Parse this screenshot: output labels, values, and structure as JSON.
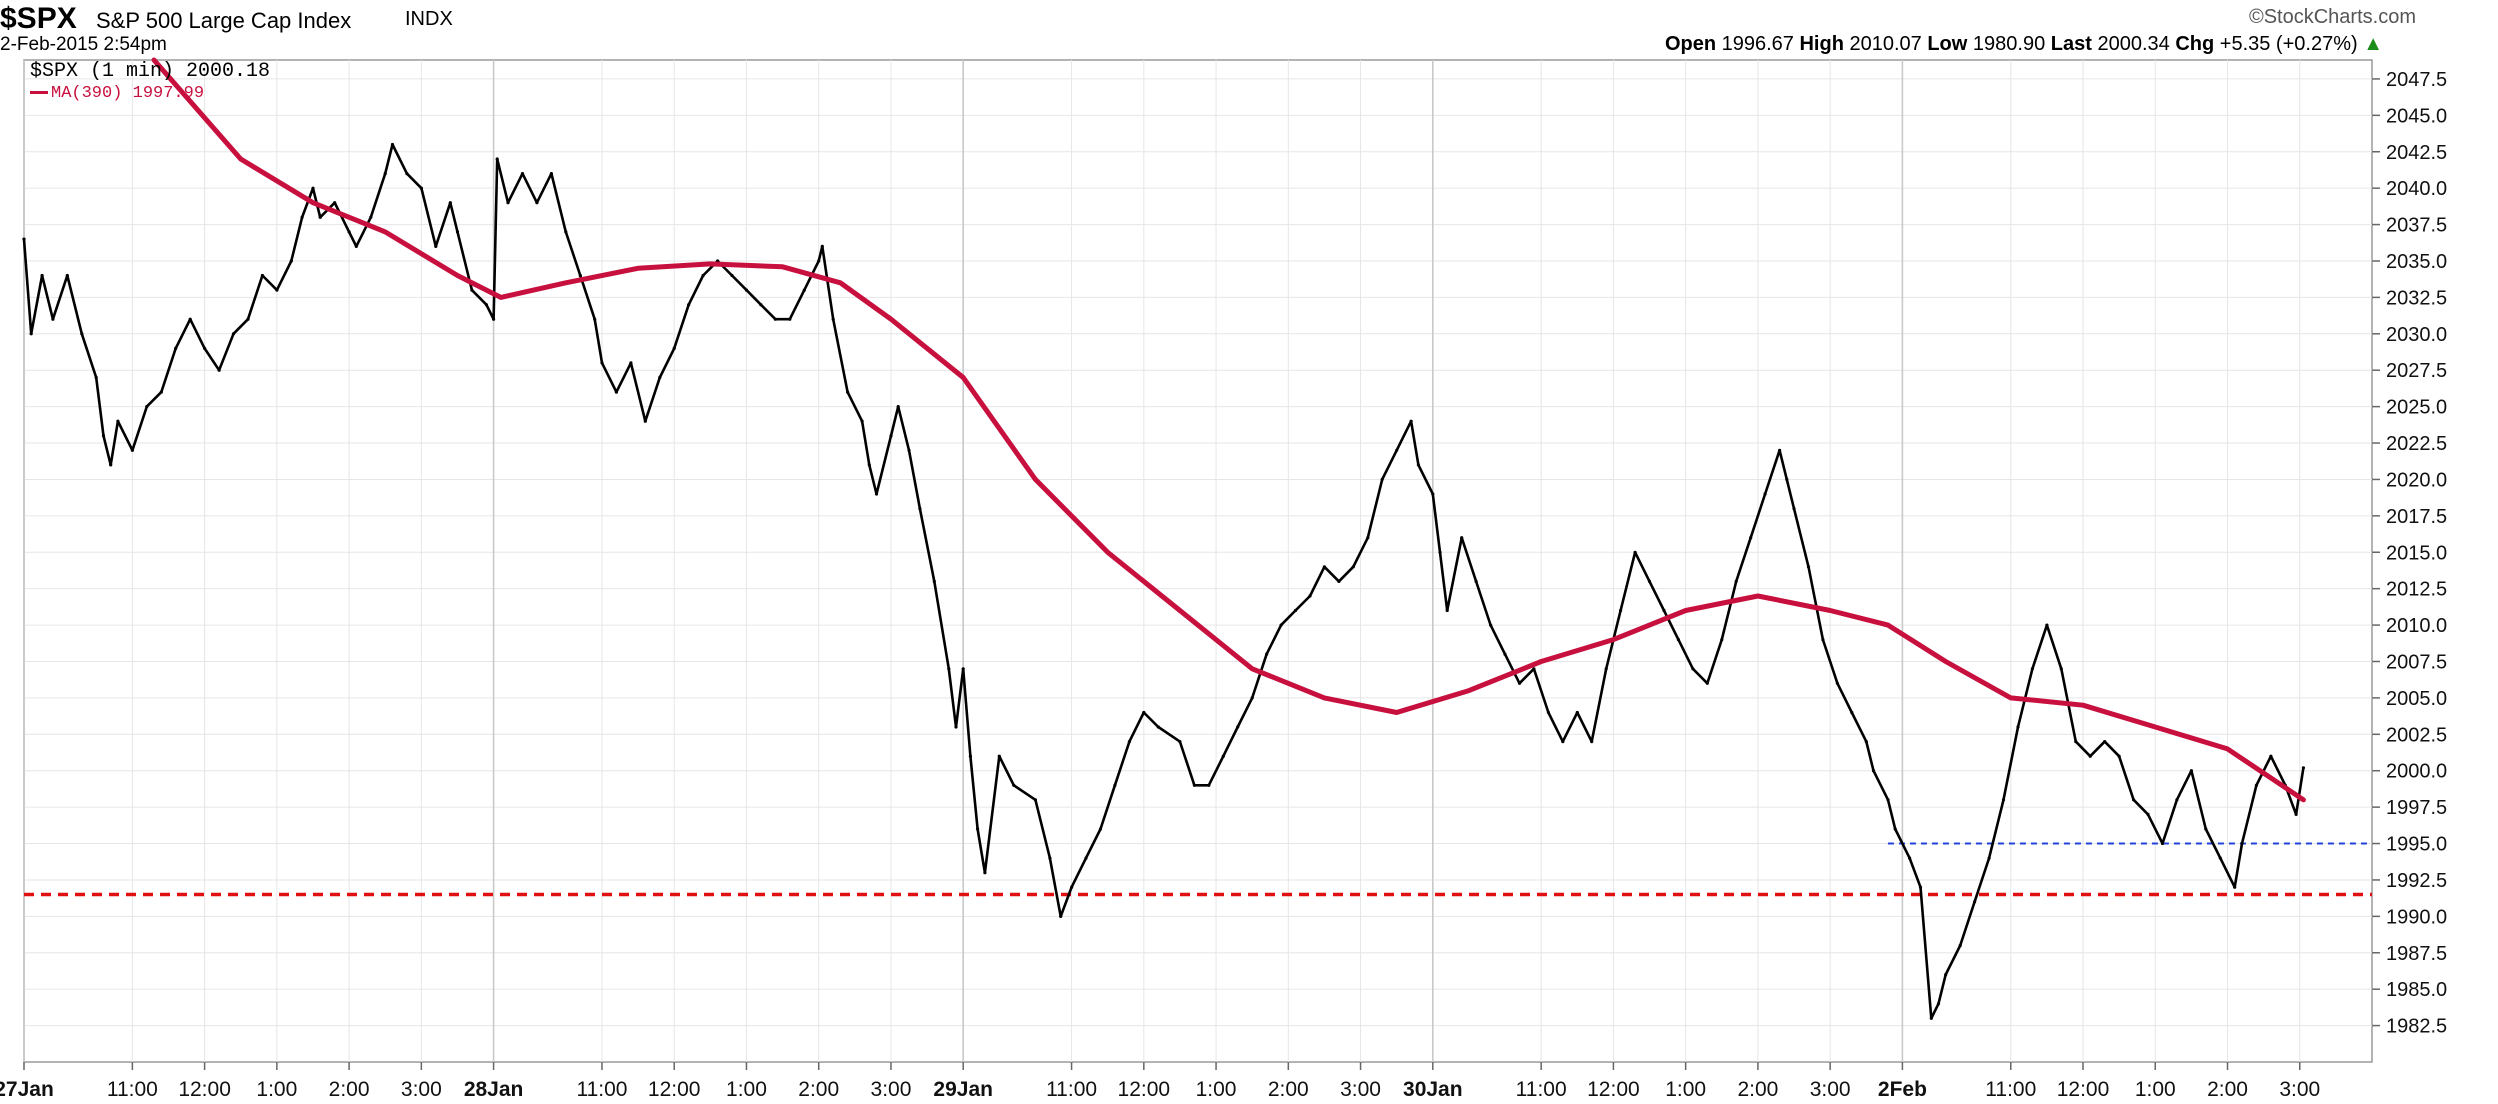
{
  "header": {
    "symbol": "$SPX",
    "name": "S&P 500 Large Cap Index",
    "exchange": "INDX",
    "datetime": "2-Feb-2015 2:54pm",
    "credit": "©StockCharts.com",
    "open_label": "Open",
    "open": "1996.67",
    "high_label": "High",
    "high": "2010.07",
    "low_label": "Low",
    "low": "1980.90",
    "last_label": "Last",
    "last": "2000.34",
    "chg_label": "Chg",
    "chg": "+5.35 (+0.27%)",
    "chg_arrow": "▲"
  },
  "legend": {
    "price_label": "$SPX (1 min) 2000.18",
    "ma_label": "MA(390) 1997.99"
  },
  "colors": {
    "price": "#000000",
    "ma": "#c8103e",
    "support": "#e01010",
    "level_blue": "#2244dd",
    "grid": "#e6e6e6"
  },
  "chart_data": {
    "type": "line",
    "title": "$SPX S&P 500 Large Cap Index INDX",
    "y_ticks": [
      "1982.5",
      "1985.0",
      "1987.5",
      "1990.0",
      "1992.5",
      "1995.0",
      "1997.5",
      "2000.0",
      "2002.5",
      "2005.0",
      "2007.5",
      "2010.0",
      "2012.5",
      "2015.0",
      "2017.5",
      "2020.0",
      "2022.5",
      "2025.0",
      "2027.5",
      "2030.0",
      "2032.5",
      "2035.0",
      "2037.5",
      "2040.0",
      "2042.5",
      "2045.0",
      "2047.5"
    ],
    "ylim": [
      1980.0,
      2048.8
    ],
    "x_labels": [
      {
        "t": 0,
        "label": "27Jan",
        "bold": true
      },
      {
        "t": 1.5,
        "label": "11:00"
      },
      {
        "t": 2.5,
        "label": "12:00"
      },
      {
        "t": 3.5,
        "label": "1:00"
      },
      {
        "t": 4.5,
        "label": "2:00"
      },
      {
        "t": 5.5,
        "label": "3:00"
      },
      {
        "t": 6.5,
        "label": "28Jan",
        "bold": true
      },
      {
        "t": 8.0,
        "label": "11:00"
      },
      {
        "t": 9.0,
        "label": "12:00"
      },
      {
        "t": 10.0,
        "label": "1:00"
      },
      {
        "t": 11.0,
        "label": "2:00"
      },
      {
        "t": 12.0,
        "label": "3:00"
      },
      {
        "t": 13.0,
        "label": "29Jan",
        "bold": true
      },
      {
        "t": 14.5,
        "label": "11:00"
      },
      {
        "t": 15.5,
        "label": "12:00"
      },
      {
        "t": 16.5,
        "label": "1:00"
      },
      {
        "t": 17.5,
        "label": "2:00"
      },
      {
        "t": 18.5,
        "label": "3:00"
      },
      {
        "t": 19.5,
        "label": "30Jan",
        "bold": true
      },
      {
        "t": 21.0,
        "label": "11:00"
      },
      {
        "t": 22.0,
        "label": "12:00"
      },
      {
        "t": 23.0,
        "label": "1:00"
      },
      {
        "t": 24.0,
        "label": "2:00"
      },
      {
        "t": 25.0,
        "label": "3:00"
      },
      {
        "t": 26.0,
        "label": "2Feb",
        "bold": true
      },
      {
        "t": 27.5,
        "label": "11:00"
      },
      {
        "t": 28.5,
        "label": "12:00"
      },
      {
        "t": 29.5,
        "label": "1:00"
      },
      {
        "t": 30.5,
        "label": "2:00"
      },
      {
        "t": 31.5,
        "label": "3:00"
      }
    ],
    "xlim": [
      0,
      32.5
    ],
    "series": [
      {
        "name": "$SPX (1 min)",
        "color": "#000000",
        "points": [
          [
            0,
            2036.5
          ],
          [
            0.1,
            2030
          ],
          [
            0.25,
            2034
          ],
          [
            0.4,
            2031
          ],
          [
            0.6,
            2034
          ],
          [
            0.8,
            2030
          ],
          [
            1.0,
            2027
          ],
          [
            1.1,
            2023
          ],
          [
            1.2,
            2021
          ],
          [
            1.3,
            2024
          ],
          [
            1.5,
            2022
          ],
          [
            1.7,
            2025
          ],
          [
            1.9,
            2026
          ],
          [
            2.1,
            2029
          ],
          [
            2.3,
            2031
          ],
          [
            2.5,
            2029
          ],
          [
            2.7,
            2027.5
          ],
          [
            2.9,
            2030
          ],
          [
            3.1,
            2031
          ],
          [
            3.3,
            2034
          ],
          [
            3.5,
            2033
          ],
          [
            3.7,
            2035
          ],
          [
            3.85,
            2038
          ],
          [
            4.0,
            2040
          ],
          [
            4.1,
            2038
          ],
          [
            4.3,
            2039
          ],
          [
            4.5,
            2037
          ],
          [
            4.6,
            2036
          ],
          [
            4.8,
            2038
          ],
          [
            5.0,
            2041
          ],
          [
            5.1,
            2043
          ],
          [
            5.3,
            2041
          ],
          [
            5.5,
            2040
          ],
          [
            5.7,
            2036
          ],
          [
            5.9,
            2039
          ],
          [
            6.0,
            2037
          ],
          [
            6.2,
            2033
          ],
          [
            6.4,
            2032
          ],
          [
            6.5,
            2031
          ],
          [
            6.55,
            2042
          ],
          [
            6.7,
            2039
          ],
          [
            6.9,
            2041
          ],
          [
            7.1,
            2039
          ],
          [
            7.3,
            2041
          ],
          [
            7.5,
            2037
          ],
          [
            7.7,
            2034
          ],
          [
            7.9,
            2031
          ],
          [
            8.0,
            2028
          ],
          [
            8.2,
            2026
          ],
          [
            8.4,
            2028
          ],
          [
            8.6,
            2024
          ],
          [
            8.8,
            2027
          ],
          [
            9.0,
            2029
          ],
          [
            9.2,
            2032
          ],
          [
            9.4,
            2034
          ],
          [
            9.6,
            2035
          ],
          [
            9.8,
            2034
          ],
          [
            10.0,
            2033
          ],
          [
            10.2,
            2032
          ],
          [
            10.4,
            2031
          ],
          [
            10.6,
            2031
          ],
          [
            10.8,
            2033
          ],
          [
            11.0,
            2035
          ],
          [
            11.05,
            2036
          ],
          [
            11.2,
            2031
          ],
          [
            11.4,
            2026
          ],
          [
            11.6,
            2024
          ],
          [
            11.7,
            2021
          ],
          [
            11.8,
            2019
          ],
          [
            12.0,
            2023
          ],
          [
            12.1,
            2025
          ],
          [
            12.25,
            2022
          ],
          [
            12.4,
            2018
          ],
          [
            12.6,
            2013
          ],
          [
            12.8,
            2007
          ],
          [
            12.9,
            2003
          ],
          [
            13.0,
            2007
          ],
          [
            13.1,
            2001
          ],
          [
            13.2,
            1996
          ],
          [
            13.3,
            1993
          ],
          [
            13.5,
            2001
          ],
          [
            13.7,
            1999
          ],
          [
            14.0,
            1998
          ],
          [
            14.2,
            1994
          ],
          [
            14.35,
            1990
          ],
          [
            14.5,
            1992
          ],
          [
            14.7,
            1994
          ],
          [
            14.9,
            1996
          ],
          [
            15.1,
            1999
          ],
          [
            15.3,
            2002
          ],
          [
            15.5,
            2004
          ],
          [
            15.7,
            2003
          ],
          [
            16.0,
            2002
          ],
          [
            16.2,
            1999
          ],
          [
            16.4,
            1999
          ],
          [
            16.6,
            2001
          ],
          [
            16.8,
            2003
          ],
          [
            17.0,
            2005
          ],
          [
            17.2,
            2008
          ],
          [
            17.4,
            2010
          ],
          [
            17.6,
            2011
          ],
          [
            17.8,
            2012
          ],
          [
            18.0,
            2014
          ],
          [
            18.2,
            2013
          ],
          [
            18.4,
            2014
          ],
          [
            18.6,
            2016
          ],
          [
            18.8,
            2020
          ],
          [
            19.0,
            2022
          ],
          [
            19.2,
            2024
          ],
          [
            19.3,
            2021
          ],
          [
            19.5,
            2019
          ],
          [
            19.6,
            2015
          ],
          [
            19.7,
            2011
          ],
          [
            19.9,
            2016
          ],
          [
            20.1,
            2013
          ],
          [
            20.3,
            2010
          ],
          [
            20.5,
            2008
          ],
          [
            20.7,
            2006
          ],
          [
            20.9,
            2007
          ],
          [
            21.1,
            2004
          ],
          [
            21.3,
            2002
          ],
          [
            21.5,
            2004
          ],
          [
            21.7,
            2002
          ],
          [
            21.9,
            2007
          ],
          [
            22.1,
            2011
          ],
          [
            22.3,
            2015
          ],
          [
            22.5,
            2013
          ],
          [
            22.7,
            2011
          ],
          [
            22.9,
            2009
          ],
          [
            23.1,
            2007
          ],
          [
            23.3,
            2006
          ],
          [
            23.5,
            2009
          ],
          [
            23.7,
            2013
          ],
          [
            23.9,
            2016
          ],
          [
            24.1,
            2019
          ],
          [
            24.3,
            2022
          ],
          [
            24.4,
            2020
          ],
          [
            24.5,
            2018
          ],
          [
            24.7,
            2014
          ],
          [
            24.9,
            2009
          ],
          [
            25.1,
            2006
          ],
          [
            25.3,
            2004
          ],
          [
            25.5,
            2002
          ],
          [
            25.6,
            2000
          ],
          [
            25.8,
            1998
          ],
          [
            25.9,
            1996
          ],
          [
            26.1,
            1994
          ],
          [
            26.25,
            1992
          ],
          [
            26.4,
            1983
          ],
          [
            26.5,
            1984
          ],
          [
            26.6,
            1986
          ],
          [
            26.8,
            1988
          ],
          [
            27.0,
            1991
          ],
          [
            27.2,
            1994
          ],
          [
            27.4,
            1998
          ],
          [
            27.6,
            2003
          ],
          [
            27.8,
            2007
          ],
          [
            28.0,
            2010
          ],
          [
            28.2,
            2007
          ],
          [
            28.4,
            2002
          ],
          [
            28.6,
            2001
          ],
          [
            28.8,
            2002
          ],
          [
            29.0,
            2001
          ],
          [
            29.2,
            1998
          ],
          [
            29.4,
            1997
          ],
          [
            29.6,
            1995
          ],
          [
            29.8,
            1998
          ],
          [
            30.0,
            2000
          ],
          [
            30.2,
            1996
          ],
          [
            30.4,
            1994
          ],
          [
            30.6,
            1992
          ],
          [
            30.7,
            1995
          ],
          [
            30.9,
            1999
          ],
          [
            31.1,
            2001
          ],
          [
            31.3,
            1999
          ],
          [
            31.45,
            1997
          ],
          [
            31.55,
            2000.2
          ]
        ]
      },
      {
        "name": "MA(390)",
        "color": "#c8103e",
        "points": [
          [
            1.8,
            2048.8
          ],
          [
            3.0,
            2042
          ],
          [
            4.0,
            2039
          ],
          [
            5.0,
            2037
          ],
          [
            6.0,
            2034
          ],
          [
            6.6,
            2032.5
          ],
          [
            7.5,
            2033.5
          ],
          [
            8.5,
            2034.5
          ],
          [
            9.5,
            2034.8
          ],
          [
            10.5,
            2034.6
          ],
          [
            11.3,
            2033.5
          ],
          [
            12.0,
            2031
          ],
          [
            13.0,
            2027
          ],
          [
            14.0,
            2020
          ],
          [
            15.0,
            2015
          ],
          [
            16.0,
            2011
          ],
          [
            17.0,
            2007
          ],
          [
            18.0,
            2005
          ],
          [
            19.0,
            2004
          ],
          [
            20.0,
            2005.5
          ],
          [
            21.0,
            2007.5
          ],
          [
            22.0,
            2009
          ],
          [
            23.0,
            2011
          ],
          [
            24.0,
            2012
          ],
          [
            25.0,
            2011
          ],
          [
            25.8,
            2010
          ],
          [
            26.6,
            2007.5
          ],
          [
            27.5,
            2005
          ],
          [
            28.5,
            2004.5
          ],
          [
            29.5,
            2003
          ],
          [
            30.5,
            2001.5
          ],
          [
            31.55,
            1998
          ]
        ]
      }
    ],
    "hlines": [
      {
        "y": 1991.5,
        "color": "#e01010",
        "style": "dashed"
      },
      {
        "y": 1995.0,
        "color": "#2244dd",
        "style": "dashed",
        "from_t": 25.8
      }
    ]
  }
}
